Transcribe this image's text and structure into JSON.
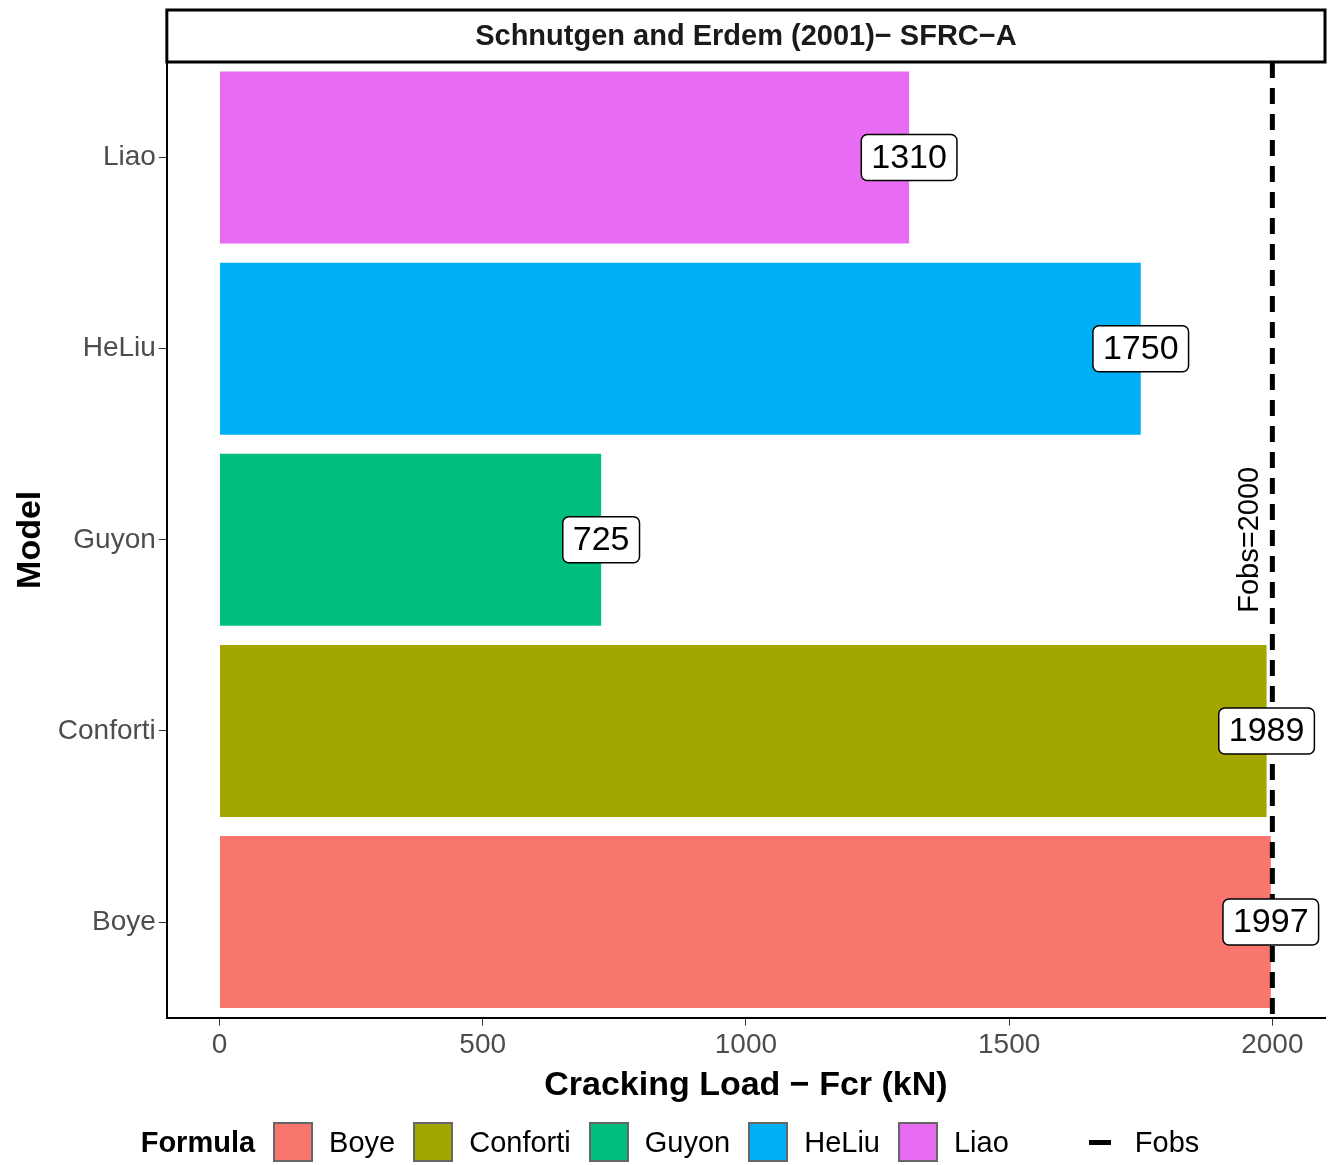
{
  "chart_data": {
    "type": "bar",
    "orientation": "horizontal",
    "title": "Schnutgen and Erdem (2001)− SFRC−A",
    "xlabel": "Cracking Load − Fcr (kN)",
    "ylabel": "Model",
    "legend_title": "Formula",
    "categories": [
      "Liao",
      "HeLiu",
      "Guyon",
      "Conforti",
      "Boye"
    ],
    "series": [
      {
        "name": "Boye",
        "color": "#f8766d",
        "values": [
          null,
          null,
          null,
          null,
          1997
        ]
      },
      {
        "name": "Conforti",
        "color": "#a3a500",
        "values": [
          null,
          null,
          null,
          1989,
          null
        ]
      },
      {
        "name": "Guyon",
        "color": "#00bf7d",
        "values": [
          null,
          null,
          725,
          null,
          null
        ]
      },
      {
        "name": "HeLiu",
        "color": "#00b0f6",
        "values": [
          null,
          1750,
          null,
          null,
          null
        ]
      },
      {
        "name": "Liao",
        "color": "#e76bf3",
        "values": [
          1310,
          null,
          null,
          null,
          null
        ]
      }
    ],
    "xlim": [
      -100,
      2100
    ],
    "xticks": [
      0,
      500,
      1000,
      1500,
      2000
    ],
    "grid": false,
    "data_labels": true,
    "legend": "bottom",
    "ref_lines": [
      {
        "axis": "x",
        "value": 2000,
        "label": "Fobs=2000",
        "color": "#000000",
        "line_style": "dashed"
      }
    ],
    "annotations": [
      "Fobs"
    ]
  }
}
